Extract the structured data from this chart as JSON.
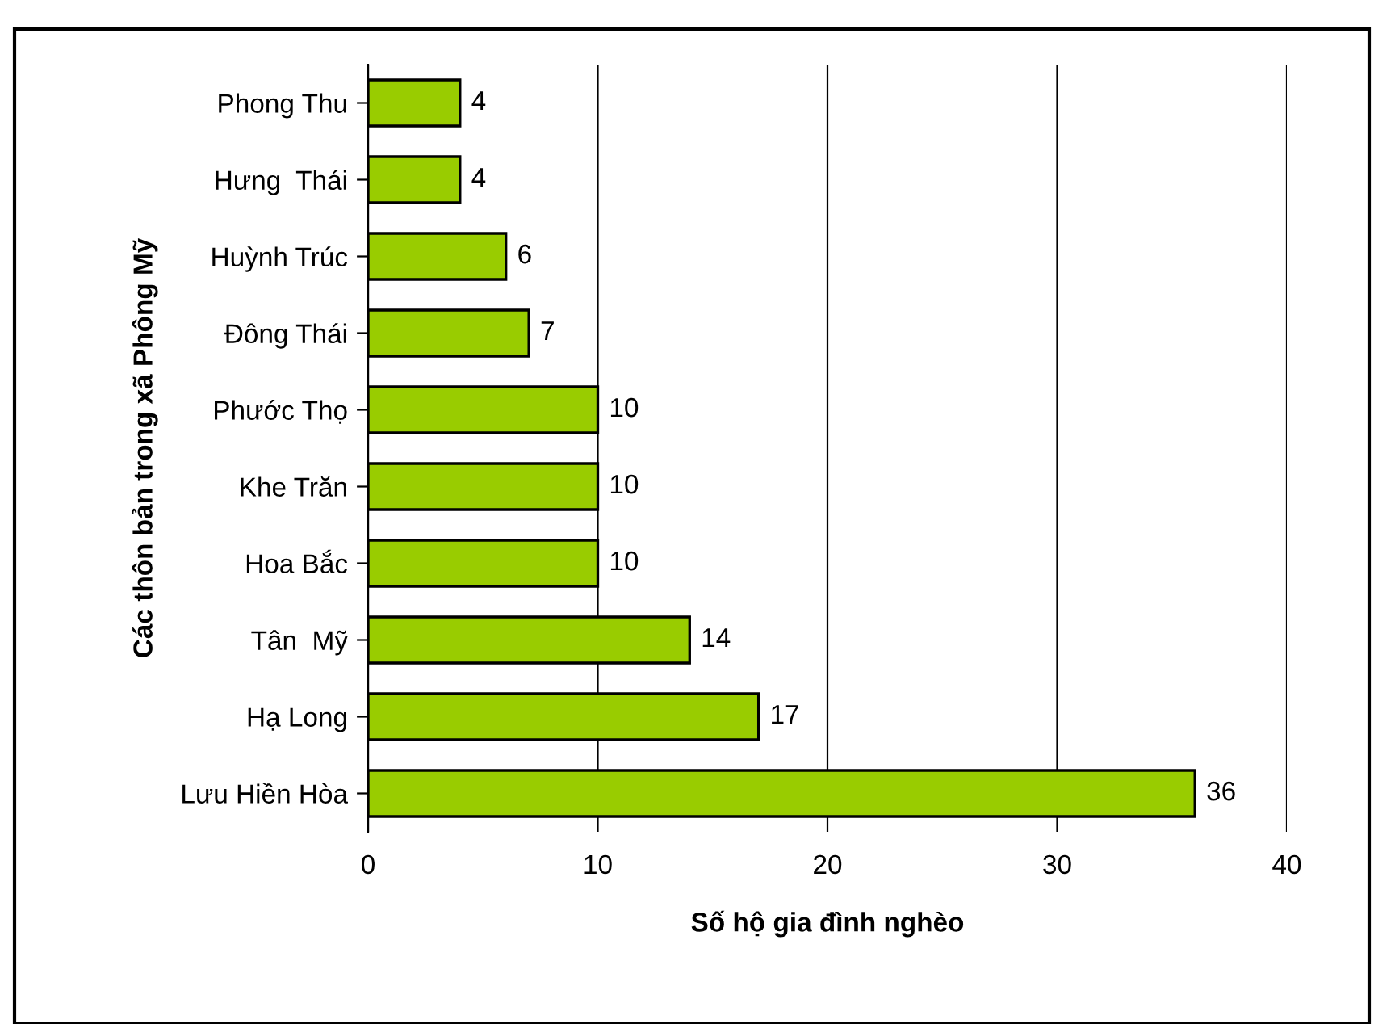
{
  "chart_data": {
    "type": "bar",
    "orientation": "horizontal",
    "xlabel": "Số hộ gia đình nghèo",
    "ylabel": "Các thôn bản trong xã Phông Mỹ",
    "categories": [
      "Phong Thu",
      "Hưng  Thái",
      "Huỳnh Trúc",
      "Đông Thái",
      "Phước Thọ",
      "Khe Trăn",
      "Hoa Bắc",
      "Tân  Mỹ",
      "Hạ Long",
      "Lưu Hiền Hòa"
    ],
    "values": [
      4,
      4,
      6,
      7,
      10,
      10,
      10,
      14,
      17,
      36
    ],
    "color": "#99cc00",
    "xlim": [
      0,
      40
    ],
    "xticks": [
      0,
      10,
      20,
      30,
      40
    ],
    "grid": "x",
    "data_labels": true
  }
}
